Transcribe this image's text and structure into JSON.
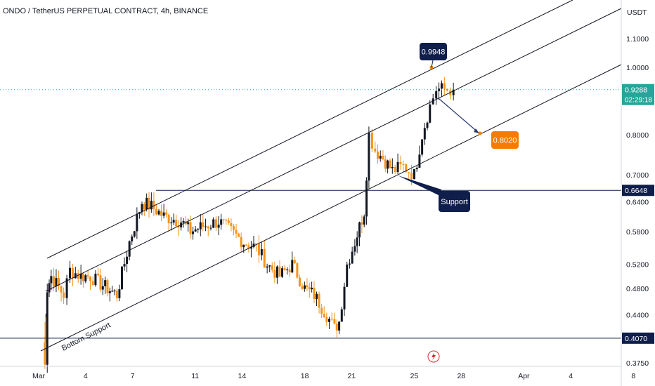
{
  "chart_data": {
    "type": "candlestick",
    "title": "ONDO / TetherUS PERPETUAL CONTRACT, 4h, BINANCE",
    "currency": "USDT",
    "y_scale": "log",
    "ylim": [
      0.372,
      1.25
    ],
    "y_ticks": [
      "1.1000",
      "1.0000",
      "0.8000",
      "0.7000",
      "0.6400",
      "0.5800",
      "0.5200",
      "0.4800",
      "0.4400",
      "0.3750"
    ],
    "x_ticks": [
      "Mar",
      "4",
      "7",
      "11",
      "14",
      "18",
      "21",
      "25",
      "28",
      "Apr",
      "4",
      "8"
    ],
    "last_price": {
      "value": "0.9288",
      "countdown": "02:29:18",
      "color": "#26a69a"
    },
    "horizontal_levels": [
      {
        "value": 0.6648,
        "label": "0.6648"
      },
      {
        "value": 0.407,
        "label": "0.4070"
      }
    ],
    "channel_lines": [
      "upper",
      "middle",
      "lower"
    ],
    "annotations": {
      "high_callout": "0.9948",
      "target": "0.8020",
      "support": "Support",
      "bottom_support": "Bottom Support"
    },
    "colors": {
      "up": "#131722",
      "down": "#f7931a",
      "label_dark": "#0f1e4a",
      "label_orange": "#f57c00",
      "price_line": "#26a69a"
    },
    "anchor_closes": [
      [
        0.46,
        0.43
      ],
      [
        0.45,
        0.4
      ],
      [
        0.4,
        0.38
      ],
      [
        0.55,
        0.48
      ],
      [
        0.8,
        0.5
      ],
      [
        1.6,
        0.47
      ],
      [
        2.0,
        0.51
      ],
      [
        2.7,
        0.5
      ],
      [
        3.3,
        0.5
      ],
      [
        3.8,
        0.49
      ],
      [
        4.4,
        0.48
      ],
      [
        5.0,
        0.47
      ],
      [
        5.8,
        0.56
      ],
      [
        6.6,
        0.64
      ],
      [
        7.2,
        0.63
      ],
      [
        8.0,
        0.61
      ],
      [
        9.1,
        0.6
      ],
      [
        9.7,
        0.58
      ],
      [
        10.5,
        0.59
      ],
      [
        11.5,
        0.6
      ],
      [
        12.3,
        0.58
      ],
      [
        13.1,
        0.56
      ],
      [
        13.9,
        0.55
      ],
      [
        14.6,
        0.52
      ],
      [
        15.4,
        0.5
      ],
      [
        16.2,
        0.52
      ],
      [
        17.0,
        0.48
      ],
      [
        17.6,
        0.47
      ],
      [
        18.4,
        0.44
      ],
      [
        18.9,
        0.42
      ],
      [
        19.2,
        0.43
      ],
      [
        19.7,
        0.52
      ],
      [
        20.2,
        0.56
      ],
      [
        20.8,
        0.62
      ],
      [
        21.1,
        0.8
      ],
      [
        21.5,
        0.76
      ],
      [
        22.0,
        0.74
      ],
      [
        22.6,
        0.71
      ],
      [
        23.3,
        0.72
      ],
      [
        24.0,
        0.7
      ],
      [
        24.5,
        0.8
      ],
      [
        25.0,
        0.88
      ],
      [
        25.4,
        0.93
      ],
      [
        26.1,
        0.93
      ],
      [
        26.5,
        0.929
      ]
    ]
  }
}
